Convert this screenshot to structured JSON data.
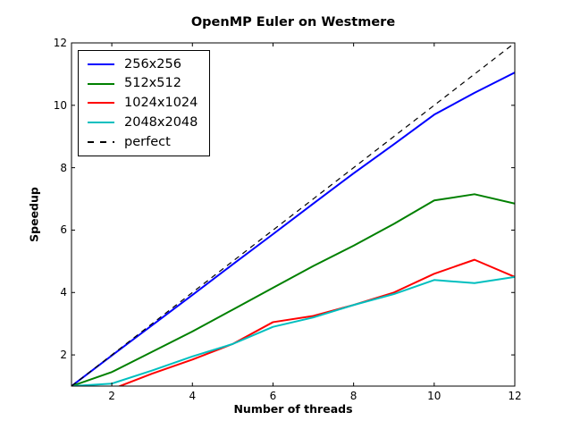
{
  "figure": {
    "title": "OpenMP Euler on Westmere",
    "xlabel": "Number of threads",
    "ylabel": "Speedup",
    "background": "#ffffff",
    "frame_color": "#000000"
  },
  "chart_data": {
    "type": "line",
    "title": "OpenMP Euler on Westmere",
    "xlabel": "Number of threads",
    "ylabel": "Speedup",
    "xlim": [
      1,
      12
    ],
    "ylim": [
      1,
      12
    ],
    "xticks": [
      2,
      4,
      6,
      8,
      10,
      12
    ],
    "yticks": [
      2,
      4,
      6,
      8,
      10,
      12
    ],
    "grid": false,
    "legend_position": "upper left",
    "x": [
      1,
      2,
      3,
      4,
      5,
      6,
      7,
      8,
      9,
      10,
      11,
      12
    ],
    "series": [
      {
        "name": "256x256",
        "color": "#0000ff",
        "style": "solid",
        "width": 2,
        "values": [
          1.0,
          1.98,
          2.95,
          3.92,
          4.9,
          5.87,
          6.85,
          7.82,
          8.75,
          9.7,
          10.4,
          11.05
        ]
      },
      {
        "name": "512x512",
        "color": "#008000",
        "style": "solid",
        "width": 2,
        "values": [
          1.0,
          1.45,
          2.1,
          2.75,
          3.45,
          4.15,
          4.85,
          5.5,
          6.2,
          6.95,
          7.15,
          6.85
        ]
      },
      {
        "name": "1024x1024",
        "color": "#ff0000",
        "style": "solid",
        "width": 2,
        "values": [
          1.0,
          0.9,
          1.4,
          1.85,
          2.35,
          3.05,
          3.25,
          3.6,
          4.0,
          4.6,
          5.05,
          4.5
        ]
      },
      {
        "name": "2048x2048",
        "color": "#00bfbf",
        "style": "solid",
        "width": 2,
        "values": [
          1.0,
          1.08,
          1.5,
          1.95,
          2.35,
          2.9,
          3.2,
          3.6,
          3.95,
          4.4,
          4.3,
          4.5
        ]
      },
      {
        "name": "perfect",
        "color": "#000000",
        "style": "dashed",
        "width": 1.2,
        "values": [
          1,
          2,
          3,
          4,
          5,
          6,
          7,
          8,
          9,
          10,
          11,
          12
        ]
      }
    ]
  }
}
